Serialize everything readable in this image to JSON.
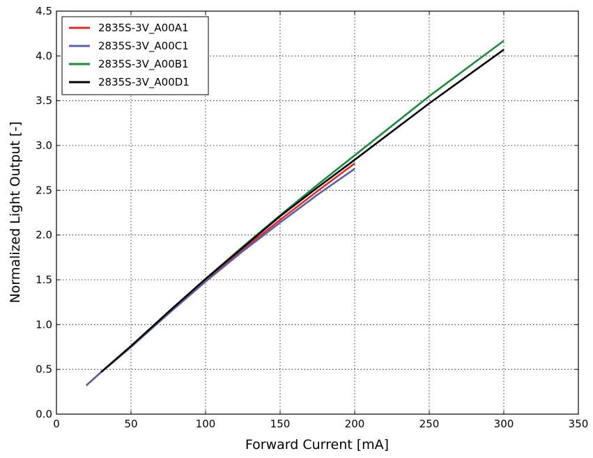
{
  "chart_data": {
    "type": "line",
    "title": "",
    "xlabel": "Forward Current [mA]",
    "ylabel": "Normalized Light Output [-]",
    "xlim": [
      0,
      350
    ],
    "ylim": [
      0,
      4.5
    ],
    "xticks": [
      0,
      50,
      100,
      150,
      200,
      250,
      300,
      350
    ],
    "xtick_labels": [
      "0",
      "50",
      "100",
      "150",
      "200",
      "250",
      "300",
      "350"
    ],
    "yticks": [
      0,
      0.5,
      1,
      1.5,
      2,
      2.5,
      3,
      3.5,
      4,
      4.5
    ],
    "ytick_labels": [
      "0.0",
      "0.5",
      "1.0",
      "1.5",
      "2.0",
      "2.5",
      "3.0",
      "3.5",
      "4.0",
      "4.5"
    ],
    "grid": true,
    "legend_position": "top-left",
    "series": [
      {
        "name": "2835S-3V_A00A1",
        "color": "#e32a2a",
        "x": [
          20,
          30,
          50,
          75,
          100,
          125,
          150,
          175,
          200
        ],
        "y": [
          0.32,
          0.47,
          0.75,
          1.13,
          1.49,
          1.84,
          2.17,
          2.49,
          2.8
        ]
      },
      {
        "name": "2835S-3V_A00C1",
        "color": "#5b5fa8",
        "x": [
          20,
          30,
          50,
          75,
          100,
          125,
          150,
          175,
          200
        ],
        "y": [
          0.32,
          0.47,
          0.75,
          1.12,
          1.48,
          1.82,
          2.14,
          2.45,
          2.74
        ]
      },
      {
        "name": "2835S-3V_A00B1",
        "color": "#1a8a3c",
        "x": [
          30,
          50,
          75,
          100,
          125,
          150,
          175,
          200,
          250,
          300
        ],
        "y": [
          0.47,
          0.76,
          1.14,
          1.51,
          1.87,
          2.22,
          2.56,
          2.89,
          3.55,
          4.17
        ]
      },
      {
        "name": "2835S-3V_A00D1",
        "color": "#000000",
        "x": [
          30,
          50,
          75,
          100,
          125,
          150,
          175,
          200,
          250,
          300
        ],
        "y": [
          0.47,
          0.76,
          1.14,
          1.51,
          1.86,
          2.21,
          2.53,
          2.84,
          3.47,
          4.07
        ]
      }
    ]
  }
}
